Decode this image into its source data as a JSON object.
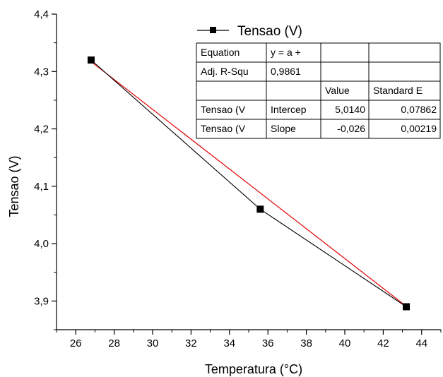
{
  "chart_data": {
    "type": "scatter",
    "xlabel": "Temperatura (°C)",
    "ylabel": "Tensao (V)",
    "xlim": [
      25,
      45
    ],
    "ylim": [
      3.85,
      4.4
    ],
    "xticks": [
      "26",
      "28",
      "30",
      "32",
      "34",
      "36",
      "38",
      "40",
      "42",
      "44"
    ],
    "yticks": [
      "3,9",
      "4,0",
      "4,1",
      "4,2",
      "4,3",
      "4,4"
    ],
    "grid": false,
    "series": [
      {
        "name": "Tensao (V)",
        "x": [
          26.8,
          35.6,
          43.2
        ],
        "y": [
          4.32,
          4.06,
          3.89
        ],
        "color": "#000000",
        "marker": "square"
      }
    ],
    "fit": {
      "color": "#e00000",
      "intercept": 5.014,
      "slope": -0.026
    },
    "legend": {
      "position": "top-right",
      "label": "Tensao (V)"
    },
    "fit_table": [
      [
        "Equation",
        "y = a +",
        "",
        ""
      ],
      [
        "Adj. R-Squ",
        "0,9861",
        "",
        ""
      ],
      [
        "",
        "",
        "Value",
        "Standard E"
      ],
      [
        "Tensao (V",
        "Intercep",
        "5,0140",
        "0,07862"
      ],
      [
        "Tensao (V",
        "Slope",
        "-0,026",
        "0,00219"
      ]
    ]
  }
}
